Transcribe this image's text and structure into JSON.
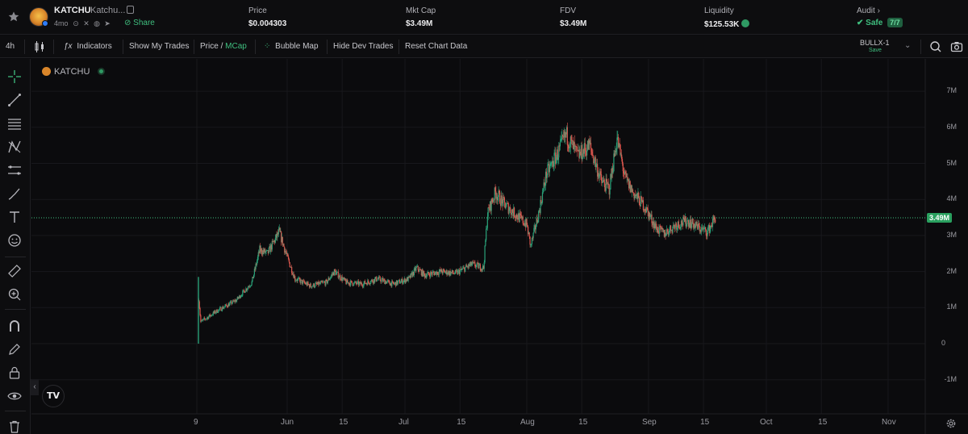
{
  "header": {
    "token_symbol": "KATCHU",
    "token_name": "Katchu...",
    "age": "4mo",
    "share_label": "Share",
    "stats": [
      {
        "label": "Price",
        "value": "$0.004303"
      },
      {
        "label": "Mkt Cap",
        "value": "$3.49M"
      },
      {
        "label": "FDV",
        "value": "$3.49M"
      },
      {
        "label": "Liquidity",
        "value": "$125.53K"
      }
    ],
    "audit": {
      "label": "Audit",
      "status": "Safe",
      "score": "7/7"
    }
  },
  "toolbar": {
    "interval": "4h",
    "indicators": "Indicators",
    "show_trades": "Show My Trades",
    "price_label": "Price",
    "divider": "/",
    "mcap_label": "MCap",
    "bubble_map": "Bubble Map",
    "hide_dev": "Hide Dev Trades",
    "reset": "Reset Chart Data",
    "layout_name": "BULLX-1",
    "layout_save": "Save"
  },
  "chart": {
    "legend_symbol": "KATCHU",
    "tv_logo": "TV",
    "current_value_label": "3.49M",
    "y_ticks": [
      "7M",
      "6M",
      "5M",
      "4M",
      "3M",
      "2M",
      "1M",
      "0",
      "-1M"
    ],
    "x_ticks": [
      "9",
      "Jun",
      "15",
      "Jul",
      "15",
      "Aug",
      "15",
      "Sep",
      "15",
      "Oct",
      "15",
      "Nov"
    ]
  },
  "colors": {
    "up": "#2aa37a",
    "down": "#e0584f",
    "accent": "#3fbf7f"
  },
  "chart_data": {
    "type": "candlestick",
    "unit": "market cap (USD)",
    "ylim": [
      -1500000,
      7500000
    ],
    "current": 3490000,
    "series": [
      {
        "date": "2024-05-09",
        "value": 0
      },
      {
        "date": "2024-05-09",
        "value": 1850000
      },
      {
        "date": "2024-05-10",
        "value": 600000
      },
      {
        "date": "2024-05-14",
        "value": 900000
      },
      {
        "date": "2024-05-19",
        "value": 1200000
      },
      {
        "date": "2024-05-23",
        "value": 1700000
      },
      {
        "date": "2024-05-25",
        "value": 2600000
      },
      {
        "date": "2024-05-27",
        "value": 2500000
      },
      {
        "date": "2024-05-30",
        "value": 3100000
      },
      {
        "date": "2024-06-01",
        "value": 2400000
      },
      {
        "date": "2024-06-03",
        "value": 1800000
      },
      {
        "date": "2024-06-07",
        "value": 1600000
      },
      {
        "date": "2024-06-11",
        "value": 1700000
      },
      {
        "date": "2024-06-13",
        "value": 2000000
      },
      {
        "date": "2024-06-16",
        "value": 1700000
      },
      {
        "date": "2024-06-20",
        "value": 1650000
      },
      {
        "date": "2024-06-24",
        "value": 1800000
      },
      {
        "date": "2024-06-28",
        "value": 1650000
      },
      {
        "date": "2024-07-02",
        "value": 1800000
      },
      {
        "date": "2024-07-04",
        "value": 2100000
      },
      {
        "date": "2024-07-06",
        "value": 1900000
      },
      {
        "date": "2024-07-10",
        "value": 2000000
      },
      {
        "date": "2024-07-14",
        "value": 1950000
      },
      {
        "date": "2024-07-18",
        "value": 2200000
      },
      {
        "date": "2024-07-21",
        "value": 2100000
      },
      {
        "date": "2024-07-22",
        "value": 3600000
      },
      {
        "date": "2024-07-24",
        "value": 4200000
      },
      {
        "date": "2024-07-26",
        "value": 3900000
      },
      {
        "date": "2024-07-28",
        "value": 3700000
      },
      {
        "date": "2024-08-01",
        "value": 3300000
      },
      {
        "date": "2024-08-02",
        "value": 2700000
      },
      {
        "date": "2024-08-04",
        "value": 3600000
      },
      {
        "date": "2024-08-06",
        "value": 4700000
      },
      {
        "date": "2024-08-09",
        "value": 5300000
      },
      {
        "date": "2024-08-11",
        "value": 5800000
      },
      {
        "date": "2024-08-14",
        "value": 5200000
      },
      {
        "date": "2024-08-17",
        "value": 5500000
      },
      {
        "date": "2024-08-20",
        "value": 4500000
      },
      {
        "date": "2024-08-22",
        "value": 4300000
      },
      {
        "date": "2024-08-24",
        "value": 5700000
      },
      {
        "date": "2024-08-26",
        "value": 4600000
      },
      {
        "date": "2024-08-28",
        "value": 4200000
      },
      {
        "date": "2024-08-31",
        "value": 3800000
      },
      {
        "date": "2024-09-03",
        "value": 3200000
      },
      {
        "date": "2024-09-05",
        "value": 3050000
      },
      {
        "date": "2024-09-08",
        "value": 3300000
      },
      {
        "date": "2024-09-11",
        "value": 3400000
      },
      {
        "date": "2024-09-14",
        "value": 3200000
      },
      {
        "date": "2024-09-16",
        "value": 3100000
      },
      {
        "date": "2024-09-18",
        "value": 3490000
      }
    ]
  }
}
